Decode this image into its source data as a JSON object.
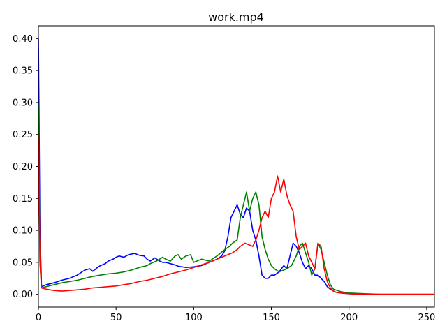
{
  "chart_data": {
    "type": "line",
    "title": "work.mp4",
    "xlabel": "",
    "ylabel": "",
    "xlim": [
      0,
      255
    ],
    "ylim": [
      -0.02,
      0.42
    ],
    "x_ticks": [
      0,
      50,
      100,
      150,
      200,
      250
    ],
    "x_tick_labels": [
      "0",
      "50",
      "100",
      "150",
      "200",
      "250"
    ],
    "y_ticks": [
      0.0,
      0.05,
      0.1,
      0.15,
      0.2,
      0.25,
      0.3,
      0.35,
      0.4
    ],
    "y_tick_labels": [
      "0.00",
      "0.05",
      "0.10",
      "0.15",
      "0.20",
      "0.25",
      "0.30",
      "0.35",
      "0.40"
    ],
    "grid": false,
    "legend": "none",
    "series": [
      {
        "color": "#0000ff",
        "x": [
          0,
          1,
          2,
          5,
          10,
          15,
          20,
          25,
          28,
          30,
          33,
          35,
          38,
          40,
          43,
          45,
          48,
          50,
          52,
          55,
          58,
          60,
          62,
          65,
          68,
          70,
          72,
          75,
          78,
          80,
          82,
          85,
          88,
          90,
          95,
          100,
          105,
          110,
          115,
          118,
          120,
          122,
          124,
          126,
          128,
          130,
          132,
          134,
          136,
          138,
          140,
          142,
          144,
          146,
          148,
          150,
          152,
          155,
          158,
          160,
          162,
          164,
          166,
          168,
          170,
          172,
          174,
          176,
          178,
          180,
          182,
          184,
          186,
          188,
          190,
          192,
          195,
          200,
          210,
          220,
          230,
          240,
          250,
          255
        ],
        "y": [
          0.4,
          0.1,
          0.012,
          0.015,
          0.018,
          0.022,
          0.025,
          0.03,
          0.035,
          0.038,
          0.04,
          0.036,
          0.042,
          0.045,
          0.048,
          0.052,
          0.055,
          0.058,
          0.06,
          0.058,
          0.062,
          0.063,
          0.064,
          0.061,
          0.06,
          0.055,
          0.052,
          0.057,
          0.052,
          0.05,
          0.05,
          0.048,
          0.046,
          0.044,
          0.042,
          0.043,
          0.045,
          0.05,
          0.055,
          0.06,
          0.068,
          0.09,
          0.12,
          0.13,
          0.14,
          0.125,
          0.12,
          0.135,
          0.13,
          0.1,
          0.085,
          0.06,
          0.03,
          0.025,
          0.025,
          0.03,
          0.03,
          0.035,
          0.045,
          0.04,
          0.06,
          0.08,
          0.075,
          0.065,
          0.05,
          0.04,
          0.045,
          0.04,
          0.03,
          0.03,
          0.025,
          0.02,
          0.012,
          0.008,
          0.005,
          0.003,
          0.002,
          0.001,
          0.0,
          0.0,
          0.0,
          0.0,
          0.0,
          0.0
        ]
      },
      {
        "color": "#008000",
        "x": [
          0,
          1,
          2,
          5,
          10,
          15,
          20,
          25,
          30,
          35,
          40,
          45,
          50,
          55,
          60,
          65,
          70,
          72,
          74,
          76,
          78,
          80,
          82,
          85,
          88,
          90,
          92,
          95,
          98,
          100,
          105,
          110,
          115,
          120,
          123,
          125,
          128,
          130,
          132,
          134,
          136,
          138,
          140,
          142,
          144,
          146,
          148,
          150,
          152,
          155,
          158,
          160,
          163,
          166,
          168,
          170,
          172,
          174,
          176,
          178,
          180,
          182,
          184,
          186,
          188,
          190,
          195,
          200,
          210,
          220,
          230,
          240,
          250,
          255
        ],
        "y": [
          0.3,
          0.05,
          0.01,
          0.012,
          0.015,
          0.018,
          0.02,
          0.022,
          0.025,
          0.028,
          0.03,
          0.032,
          0.033,
          0.035,
          0.038,
          0.042,
          0.045,
          0.048,
          0.05,
          0.052,
          0.055,
          0.058,
          0.055,
          0.052,
          0.06,
          0.062,
          0.055,
          0.06,
          0.062,
          0.05,
          0.055,
          0.052,
          0.06,
          0.07,
          0.075,
          0.08,
          0.085,
          0.12,
          0.14,
          0.16,
          0.13,
          0.15,
          0.16,
          0.14,
          0.09,
          0.07,
          0.055,
          0.045,
          0.04,
          0.035,
          0.038,
          0.04,
          0.045,
          0.06,
          0.075,
          0.08,
          0.065,
          0.05,
          0.03,
          0.04,
          0.08,
          0.07,
          0.05,
          0.03,
          0.015,
          0.008,
          0.004,
          0.002,
          0.001,
          0.0,
          0.0,
          0.0,
          0.0,
          0.0
        ]
      },
      {
        "color": "#ff0000",
        "x": [
          0,
          1,
          2,
          5,
          10,
          15,
          20,
          25,
          30,
          35,
          40,
          45,
          50,
          55,
          60,
          65,
          70,
          75,
          80,
          85,
          90,
          95,
          100,
          105,
          110,
          115,
          120,
          125,
          128,
          130,
          133,
          135,
          138,
          140,
          142,
          144,
          146,
          148,
          150,
          152,
          154,
          156,
          158,
          160,
          162,
          164,
          166,
          168,
          170,
          172,
          174,
          176,
          178,
          180,
          182,
          184,
          186,
          188,
          190,
          192,
          195,
          200,
          210,
          220,
          230,
          240,
          250,
          255
        ],
        "y": [
          0.25,
          0.05,
          0.01,
          0.008,
          0.006,
          0.005,
          0.006,
          0.007,
          0.008,
          0.01,
          0.011,
          0.012,
          0.013,
          0.015,
          0.017,
          0.02,
          0.022,
          0.025,
          0.028,
          0.032,
          0.035,
          0.038,
          0.042,
          0.046,
          0.05,
          0.055,
          0.06,
          0.065,
          0.07,
          0.075,
          0.08,
          0.078,
          0.075,
          0.085,
          0.1,
          0.12,
          0.13,
          0.12,
          0.15,
          0.16,
          0.185,
          0.16,
          0.18,
          0.155,
          0.14,
          0.13,
          0.09,
          0.07,
          0.075,
          0.08,
          0.06,
          0.05,
          0.04,
          0.08,
          0.075,
          0.04,
          0.02,
          0.01,
          0.005,
          0.003,
          0.002,
          0.001,
          0.0,
          0.0,
          0.0,
          0.0,
          0.0,
          0.0
        ]
      }
    ]
  }
}
